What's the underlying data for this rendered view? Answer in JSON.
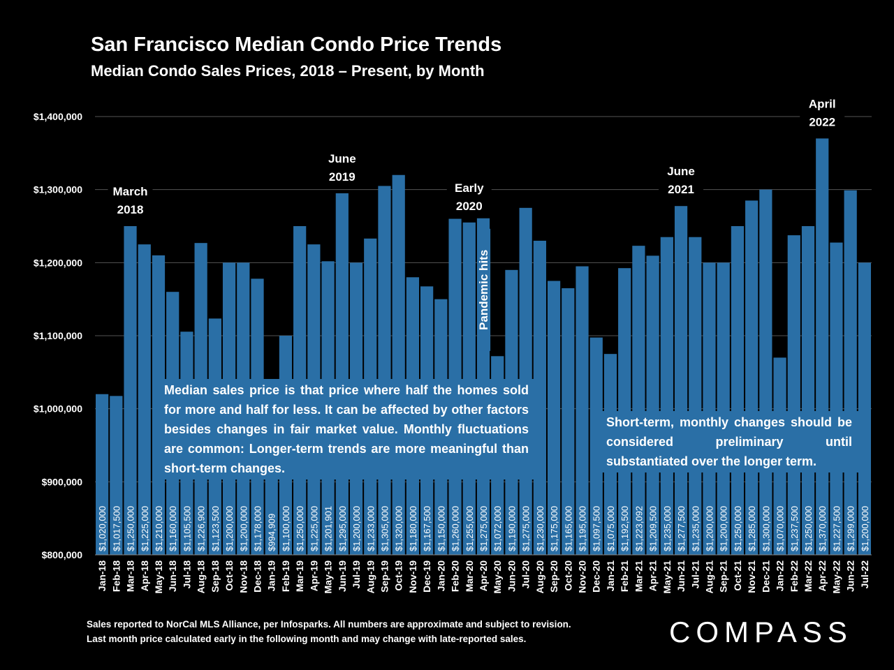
{
  "header": {
    "title": "San Francisco Median Condo Price Trends",
    "subtitle": "Median Condo Sales Prices, 2018 – Present, by Month"
  },
  "notes": {
    "left": "Median sales price is that price where half the homes sold for more and half for less. It can be affected by other factors besides changes in fair market value. Monthly fluctuations are common: Longer-term trends are more meaningful than short-term changes.",
    "right": "Short-term, monthly changes should be considered preliminary until substantiated over the longer term."
  },
  "footer": {
    "line1": "Sales reported to NorCal MLS Alliance, per Infosparks. All numbers are approximate and subject to revision.",
    "line2": "Last month price calculated early in the following month and may change with late-reported sales."
  },
  "logo": {
    "text": "COMPASS"
  },
  "colors": {
    "bar": "#2a6fa6",
    "background": "#000000",
    "grid": "#555555"
  },
  "chart_data": {
    "type": "bar",
    "title": "San Francisco Median Condo Price Trends",
    "subtitle": "Median Condo Sales Prices, 2018 – Present, by Month",
    "ylim": [
      800000,
      1400000
    ],
    "yticks": [
      800000,
      900000,
      1000000,
      1100000,
      1200000,
      1300000,
      1400000
    ],
    "ytick_labels": [
      "$800,000",
      "$900,000",
      "$1,000,000",
      "$1,100,000",
      "$1,200,000",
      "$1,300,000",
      "$1,400,000"
    ],
    "grid": true,
    "categories": [
      "Jan-18",
      "Feb-18",
      "Mar-18",
      "Apr-18",
      "May-18",
      "Jun-18",
      "Jul-18",
      "Aug-18",
      "Sep-18",
      "Oct-18",
      "Nov-18",
      "Dec-18",
      "Jan-19",
      "Feb-19",
      "Mar-19",
      "Apr-19",
      "May-19",
      "Jun-19",
      "Jul-19",
      "Aug-19",
      "Sep-19",
      "Oct-19",
      "Nov-19",
      "Dec-19",
      "Jan-20",
      "Feb-20",
      "Mar-20",
      "Apr-20",
      "May-20",
      "Jun-20",
      "Jul-20",
      "Aug-20",
      "Sep-20",
      "Oct-20",
      "Nov-20",
      "Dec-20",
      "Jan-21",
      "Feb-21",
      "Mar-21",
      "Apr-21",
      "May-21",
      "Jun-21",
      "Jul-21",
      "Aug-21",
      "Sep-21",
      "Oct-21",
      "Nov-21",
      "Dec-21",
      "Jan-22",
      "Feb-22",
      "Mar-22",
      "Apr-22",
      "May-22",
      "Jun-22",
      "Jul-22"
    ],
    "values": [
      1020000,
      1017500,
      1250000,
      1225000,
      1210000,
      1160000,
      1105500,
      1226900,
      1123500,
      1200000,
      1200000,
      1178000,
      994909,
      1100000,
      1250000,
      1225000,
      1201901,
      1295000,
      1200000,
      1233000,
      1305000,
      1320000,
      1180000,
      1167500,
      1150000,
      1260000,
      1255000,
      1275000,
      1072000,
      1190000,
      1275000,
      1230000,
      1175000,
      1165000,
      1195000,
      1097500,
      1075000,
      1192500,
      1223092,
      1209500,
      1235000,
      1277500,
      1235000,
      1200000,
      1200000,
      1250000,
      1285000,
      1300000,
      1070000,
      1237500,
      1250000,
      1370000,
      1227500,
      1299000,
      1200000
    ],
    "value_labels": [
      "$1,020,000",
      "$1,017,500",
      "$1,250,000",
      "$1,225,000",
      "$1,210,000",
      "$1,160,000",
      "$1,105,500",
      "$1,226,900",
      "$1,123,500",
      "$1,200,000",
      "$1,200,000",
      "$1,178,000",
      "$994,909",
      "$1,100,000",
      "$1,250,000",
      "$1,225,000",
      "$1,201,901",
      "$1,295,000",
      "$1,200,000",
      "$1,233,000",
      "$1,305,000",
      "$1,320,000",
      "$1,180,000",
      "$1,167,500",
      "$1,150,000",
      "$1,260,000",
      "$1,255,000",
      "$1,275,000",
      "$1,072,000",
      "$1,190,000",
      "$1,275,000",
      "$1,230,000",
      "$1,175,000",
      "$1,165,000",
      "$1,195,000",
      "$1,097,500",
      "$1,075,000",
      "$1,192,500",
      "$1,223,092",
      "$1,209,500",
      "$1,235,000",
      "$1,277,500",
      "$1,235,000",
      "$1,200,000",
      "$1,200,000",
      "$1,250,000",
      "$1,285,000",
      "$1,300,000",
      "$1,070,000",
      "$1,237,500",
      "$1,250,000",
      "$1,370,000",
      "$1,227,500",
      "$1,299,000",
      "$1,200,000"
    ],
    "annotations": [
      {
        "lines": [
          "March",
          "2018"
        ],
        "category": "Mar-18"
      },
      {
        "lines": [
          "June",
          "2019"
        ],
        "category": "Jun-19"
      },
      {
        "lines": [
          "Early",
          "2020"
        ],
        "category": "Mar-20"
      },
      {
        "lines": [
          "June",
          "2021"
        ],
        "category": "Jun-21"
      },
      {
        "lines": [
          "April",
          "2022"
        ],
        "category": "Apr-22"
      },
      {
        "lines": [
          "Pandemic hits"
        ],
        "category": "Apr-20",
        "rotated": true
      }
    ]
  }
}
